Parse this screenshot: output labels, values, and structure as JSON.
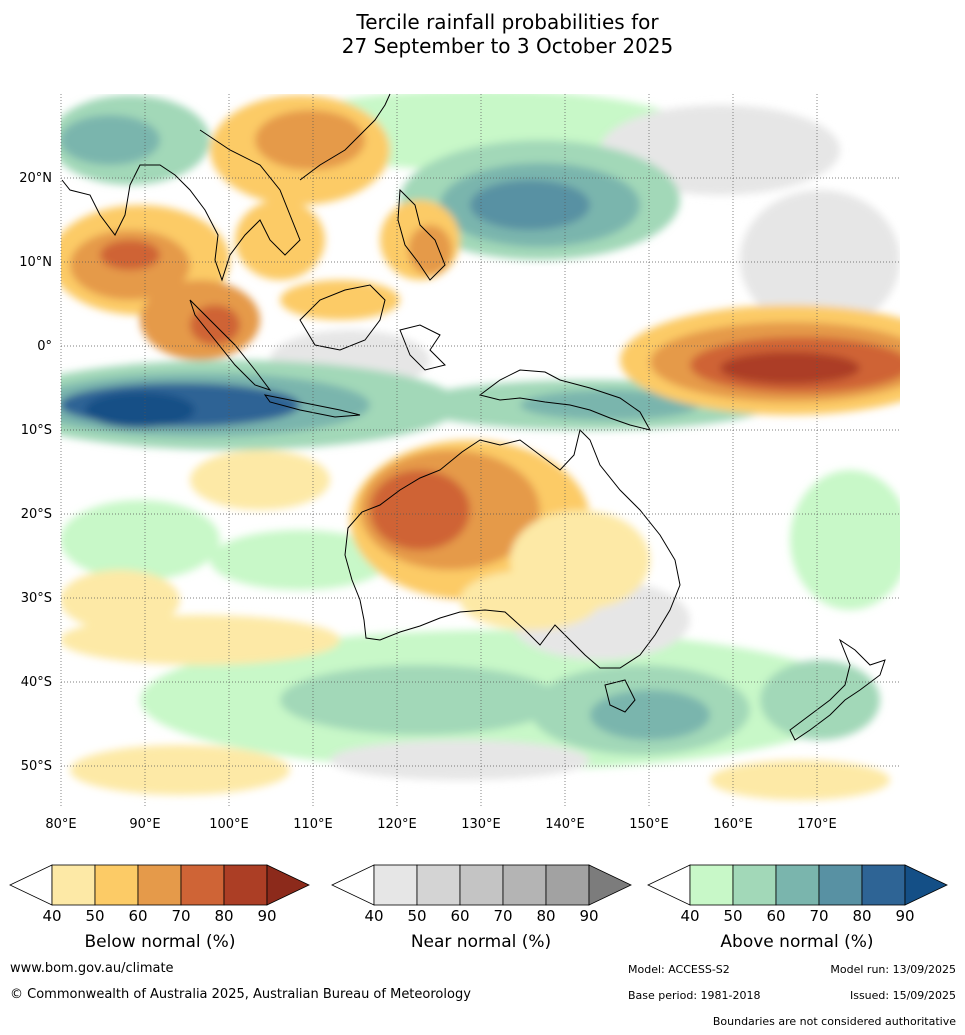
{
  "title": {
    "line1": "Tercile rainfall probabilities for",
    "line2": "27 September to 3 October 2025"
  },
  "map": {
    "lat_labels": [
      "20°N",
      "10°N",
      "0°",
      "10°S",
      "20°S",
      "30°S",
      "40°S",
      "50°S"
    ],
    "lon_labels": [
      "80°E",
      "90°E",
      "100°E",
      "110°E",
      "120°E",
      "130°E",
      "140°E",
      "150°E",
      "160°E",
      "170°E"
    ],
    "lon_range": [
      80,
      180
    ],
    "lat_range": [
      -55,
      30
    ],
    "gridlines": true
  },
  "colorbars": [
    {
      "title": "Below normal (%)",
      "ticks": [
        "40",
        "50",
        "60",
        "70",
        "80",
        "90"
      ],
      "colors": [
        "#ffffff",
        "#fde9a6",
        "#fccb66",
        "#e59a4a",
        "#cf6436",
        "#ac3e25",
        "#8c2a1b"
      ]
    },
    {
      "title": "Near normal (%)",
      "ticks": [
        "40",
        "50",
        "60",
        "70",
        "80",
        "90"
      ],
      "colors": [
        "#ffffff",
        "#e6e6e6",
        "#d4d4d4",
        "#c4c4c4",
        "#b4b4b4",
        "#a2a2a2",
        "#7c7c7c"
      ]
    },
    {
      "title": "Above normal (%)",
      "ticks": [
        "40",
        "50",
        "60",
        "70",
        "80",
        "90"
      ],
      "colors": [
        "#ffffff",
        "#c8f8c8",
        "#a2d8b8",
        "#7ab5ad",
        "#5891a3",
        "#2e6495",
        "#144f86"
      ]
    }
  ],
  "footer": {
    "website": "www.bom.gov.au/climate",
    "copyright": "© Commonwealth of Australia 2025, Australian Bureau of Meteorology",
    "model": "Model: ACCESS-S2",
    "model_run": "Model run: 13/09/2025",
    "base_period": "Base period: 1981-2018",
    "issued": "Issued: 15/09/2025",
    "disclaimer": "Boundaries are not considered authoritative"
  }
}
